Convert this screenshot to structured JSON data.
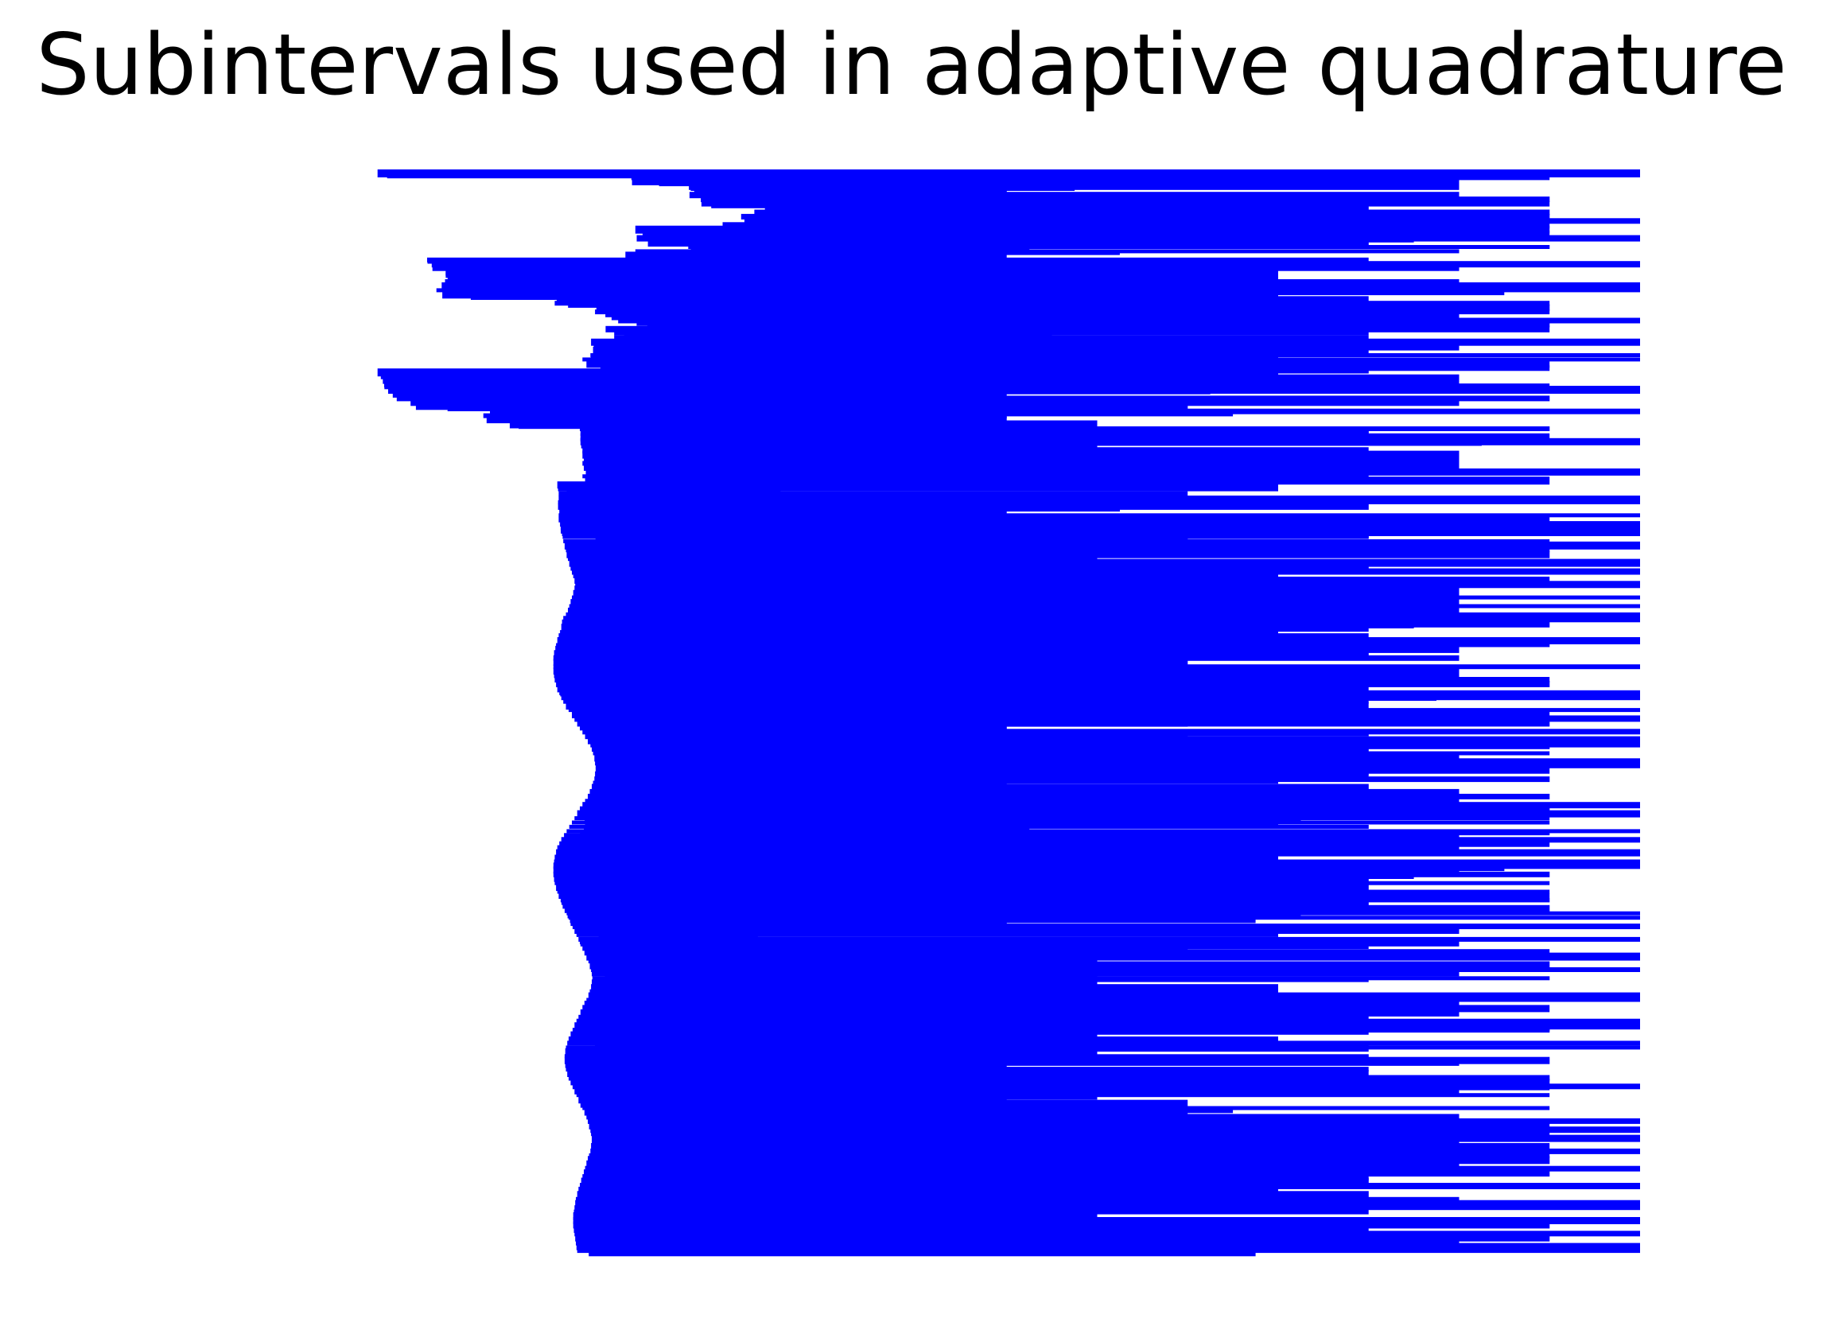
{
  "chart_data": {
    "type": "bar",
    "orientation": "horizontal",
    "title": "Subintervals used in adaptive quadrature",
    "xlabel": "",
    "ylabel": "",
    "axes_visible": false,
    "grid": false,
    "bar_color": "#0000ff",
    "xlim": [
      0.01,
      2.2
    ],
    "levels": 64,
    "subinterval_count": 250,
    "start_points": [
      0.29,
      0.674,
      0.675,
      0.761,
      0.769,
      0.762,
      0.779,
      0.78,
      0.876,
      0.86,
      0.84,
      0.845,
      0.812,
      0.68,
      0.691,
      0.682,
      0.699,
      0.76,
      0.68,
      0.665,
      0.365,
      0.372,
      0.373,
      0.393,
      0.396,
      0.392,
      0.387,
      0.379,
      0.388,
      0.561,
      0.558,
      0.621,
      0.619,
      0.644,
      0.654,
      0.698,
      0.635,
      0.648,
      0.648,
      0.613,
      0.617,
      0.616,
      0.612,
      0.6,
      0.606,
      0.636,
      0.29,
      0.295,
      0.298,
      0.3,
      0.306,
      0.313,
      0.319,
      0.34,
      0.348,
      0.46,
      0.45,
      0.455,
      0.49,
      0.596,
      0.597,
      0.597,
      0.597,
      0.598,
      0.6,
      0.6,
      0.602,
      0.6,
      0.602,
      0.605,
      0.6,
      0.604,
      0.562,
      0.563,
      0.564,
      0.564,
      0.563,
      0.563,
      0.565,
      0.564,
      0.564,
      0.566,
      0.567,
      0.569,
      0.57,
      0.571,
      0.573,
      0.575,
      0.576,
      0.578,
      0.58,
      0.582,
      0.584,
      0.586,
      0.588,
      0.589,
      0.588,
      0.586,
      0.584,
      0.582,
      0.58,
      0.578,
      0.575,
      0.571,
      0.569,
      0.568,
      0.566,
      0.564,
      0.562,
      0.56,
      0.559,
      0.557,
      0.556,
      0.556,
      0.556,
      0.556,
      0.557,
      0.558,
      0.56,
      0.562,
      0.565,
      0.568,
      0.571,
      0.575,
      0.579,
      0.584,
      0.588,
      0.592,
      0.596,
      0.6,
      0.604,
      0.608,
      0.612,
      0.614,
      0.616,
      0.618,
      0.619,
      0.62,
      0.62,
      0.619,
      0.618,
      0.616,
      0.614,
      0.611,
      0.608,
      0.604,
      0.6,
      0.596,
      0.592,
      0.588,
      0.584,
      0.58,
      0.576,
      0.572,
      0.568,
      0.565,
      0.562,
      0.56,
      0.558,
      0.557,
      0.556,
      0.556,
      0.556,
      0.557,
      0.558,
      0.56,
      0.562,
      0.564,
      0.567,
      0.57,
      0.573,
      0.576,
      0.579,
      0.582,
      0.585,
      0.588,
      0.591,
      0.594,
      0.597,
      0.6,
      0.603,
      0.606,
      0.609,
      0.611,
      0.613,
      0.614,
      0.615,
      0.614,
      0.613,
      0.611,
      0.609,
      0.606,
      0.603,
      0.6,
      0.597,
      0.594,
      0.591,
      0.588,
      0.585,
      0.582,
      0.579,
      0.577,
      0.575,
      0.574,
      0.573,
      0.573,
      0.574,
      0.575,
      0.577,
      0.579,
      0.582,
      0.585,
      0.588,
      0.591,
      0.594,
      0.597,
      0.6,
      0.603,
      0.606,
      0.608,
      0.61,
      0.612,
      0.613,
      0.614,
      0.614,
      0.613,
      0.612,
      0.61,
      0.608,
      0.606,
      0.604,
      0.602,
      0.6,
      0.598,
      0.596,
      0.594,
      0.592,
      0.59,
      0.589,
      0.588,
      0.587,
      0.586,
      0.586,
      0.586,
      0.587,
      0.588,
      0.589,
      0.59,
      0.591,
      0.592
    ]
  }
}
